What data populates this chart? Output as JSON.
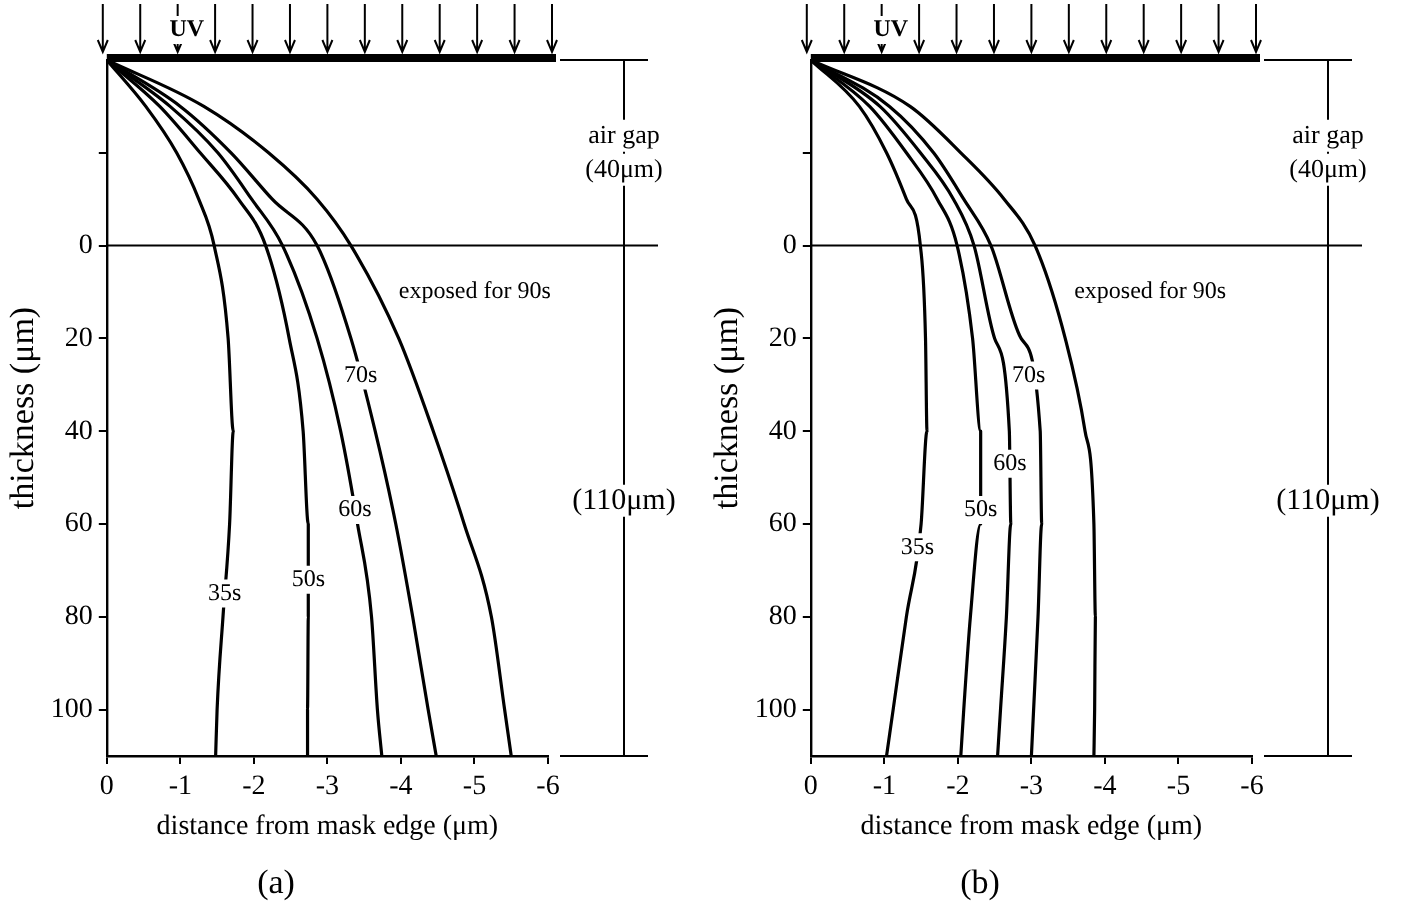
{
  "chart_data": [
    {
      "type": "line",
      "title": "(a)",
      "xlabel": "distance from mask edge (μm)",
      "ylabel": "thickness (μm)",
      "annotations": [
        "UV",
        "air gap (40μm)",
        "(110μm)"
      ],
      "xlim": [
        0,
        -6
      ],
      "xticks": [
        0,
        -1,
        -2,
        -3,
        -4,
        -5,
        -6
      ],
      "ylim": [
        110,
        -40
      ],
      "yticks": [
        {
          "value": -20,
          "label": null
        },
        0,
        20,
        40,
        60,
        80,
        100
      ],
      "grid": false,
      "legend": false,
      "marker": "none",
      "line_style": "solid",
      "ref_lines": [
        {
          "axis": "y",
          "value": 0,
          "color": "#000000"
        }
      ],
      "series": [
        {
          "name": "35s",
          "color": "#000000",
          "x": [
            0,
            -0.53,
            -0.95,
            -1.25,
            -1.46,
            -1.65,
            -1.72,
            -1.67,
            -1.58,
            -1.5,
            -1.48
          ],
          "values": [
            -40,
            -30,
            -20,
            -10,
            0,
            20,
            40,
            60,
            80,
            100,
            110
          ]
        },
        {
          "name": "50s",
          "color": "#000000",
          "x": [
            0,
            -0.72,
            -1.27,
            -1.79,
            -2.16,
            -2.48,
            -2.67,
            -2.74,
            -2.74,
            -2.73,
            -2.73
          ],
          "values": [
            -40,
            -30,
            -20,
            -10,
            0,
            20,
            40,
            60,
            80,
            100,
            110
          ]
        },
        {
          "name": "60s",
          "color": "#000000",
          "x": [
            0,
            -0.86,
            -1.51,
            -1.97,
            -2.39,
            -2.86,
            -3.18,
            -3.41,
            -3.6,
            -3.68,
            -3.74
          ],
          "values": [
            -40,
            -30,
            -20,
            -10,
            0,
            20,
            40,
            60,
            80,
            100,
            110
          ]
        },
        {
          "name": "70s",
          "color": "#000000",
          "x": [
            0,
            -1.0,
            -1.69,
            -2.25,
            -2.86,
            -3.32,
            -3.65,
            -3.93,
            -4.16,
            -4.37,
            -4.48
          ],
          "values": [
            -40,
            -30,
            -20,
            -10,
            0,
            20,
            40,
            60,
            80,
            100,
            110
          ]
        },
        {
          "name": "exposed for 90s",
          "color": "#000000",
          "x": [
            0,
            -1.32,
            -2.2,
            -2.86,
            -3.32,
            -3.97,
            -4.44,
            -4.86,
            -5.23,
            -5.41,
            -5.5
          ],
          "values": [
            -40,
            -30,
            -20,
            -10,
            0,
            20,
            40,
            60,
            80,
            100,
            110
          ]
        }
      ]
    },
    {
      "type": "line",
      "title": "(b)",
      "xlabel": "distance from mask edge (μm)",
      "ylabel": "thickness (μm)",
      "annotations": [
        "UV",
        "air gap (40μm)",
        "(110μm)"
      ],
      "xlim": [
        0,
        -6
      ],
      "xticks": [
        0,
        -1,
        -2,
        -3,
        -4,
        -5,
        -6
      ],
      "ylim": [
        110,
        -40
      ],
      "yticks": [
        {
          "value": -20,
          "label": null
        },
        0,
        20,
        40,
        60,
        80,
        100
      ],
      "grid": false,
      "legend": false,
      "marker": "none",
      "line_style": "solid",
      "ref_lines": [
        {
          "axis": "y",
          "value": 0,
          "color": "#000000"
        }
      ],
      "series": [
        {
          "name": "35s",
          "color": "#000000",
          "x": [
            0,
            -0.66,
            -1.03,
            -1.3,
            -1.49,
            -1.56,
            -1.58,
            -1.5,
            -1.3,
            -1.12,
            -1.03
          ],
          "values": [
            -40,
            -30,
            -20,
            -10,
            0,
            20,
            40,
            60,
            80,
            100,
            110
          ]
        },
        {
          "name": "50s",
          "color": "#000000",
          "x": [
            0,
            -0.8,
            -1.3,
            -1.72,
            -1.99,
            -2.2,
            -2.31,
            -2.31,
            -2.17,
            -2.08,
            -2.04
          ],
          "values": [
            -40,
            -30,
            -20,
            -10,
            0,
            20,
            40,
            60,
            80,
            100,
            110
          ]
        },
        {
          "name": "60s",
          "color": "#000000",
          "x": [
            0,
            -0.94,
            -1.49,
            -1.94,
            -2.22,
            -2.5,
            -2.7,
            -2.72,
            -2.66,
            -2.58,
            -2.54
          ],
          "values": [
            -40,
            -30,
            -20,
            -10,
            0,
            20,
            40,
            60,
            80,
            100,
            110
          ]
        },
        {
          "name": "70s",
          "color": "#000000",
          "x": [
            0,
            -1.07,
            -1.67,
            -2.08,
            -2.45,
            -2.86,
            -3.12,
            -3.14,
            -3.09,
            -3.03,
            -3.0
          ],
          "values": [
            -40,
            -30,
            -20,
            -10,
            0,
            20,
            40,
            60,
            80,
            100,
            110
          ]
        },
        {
          "name": "exposed for 90s",
          "color": "#000000",
          "x": [
            0,
            -1.35,
            -2.04,
            -2.63,
            -3.05,
            -3.46,
            -3.73,
            -3.85,
            -3.87,
            -3.86,
            -3.85
          ],
          "values": [
            -40,
            -30,
            -20,
            -10,
            0,
            20,
            40,
            60,
            80,
            100,
            110
          ]
        }
      ]
    }
  ]
}
